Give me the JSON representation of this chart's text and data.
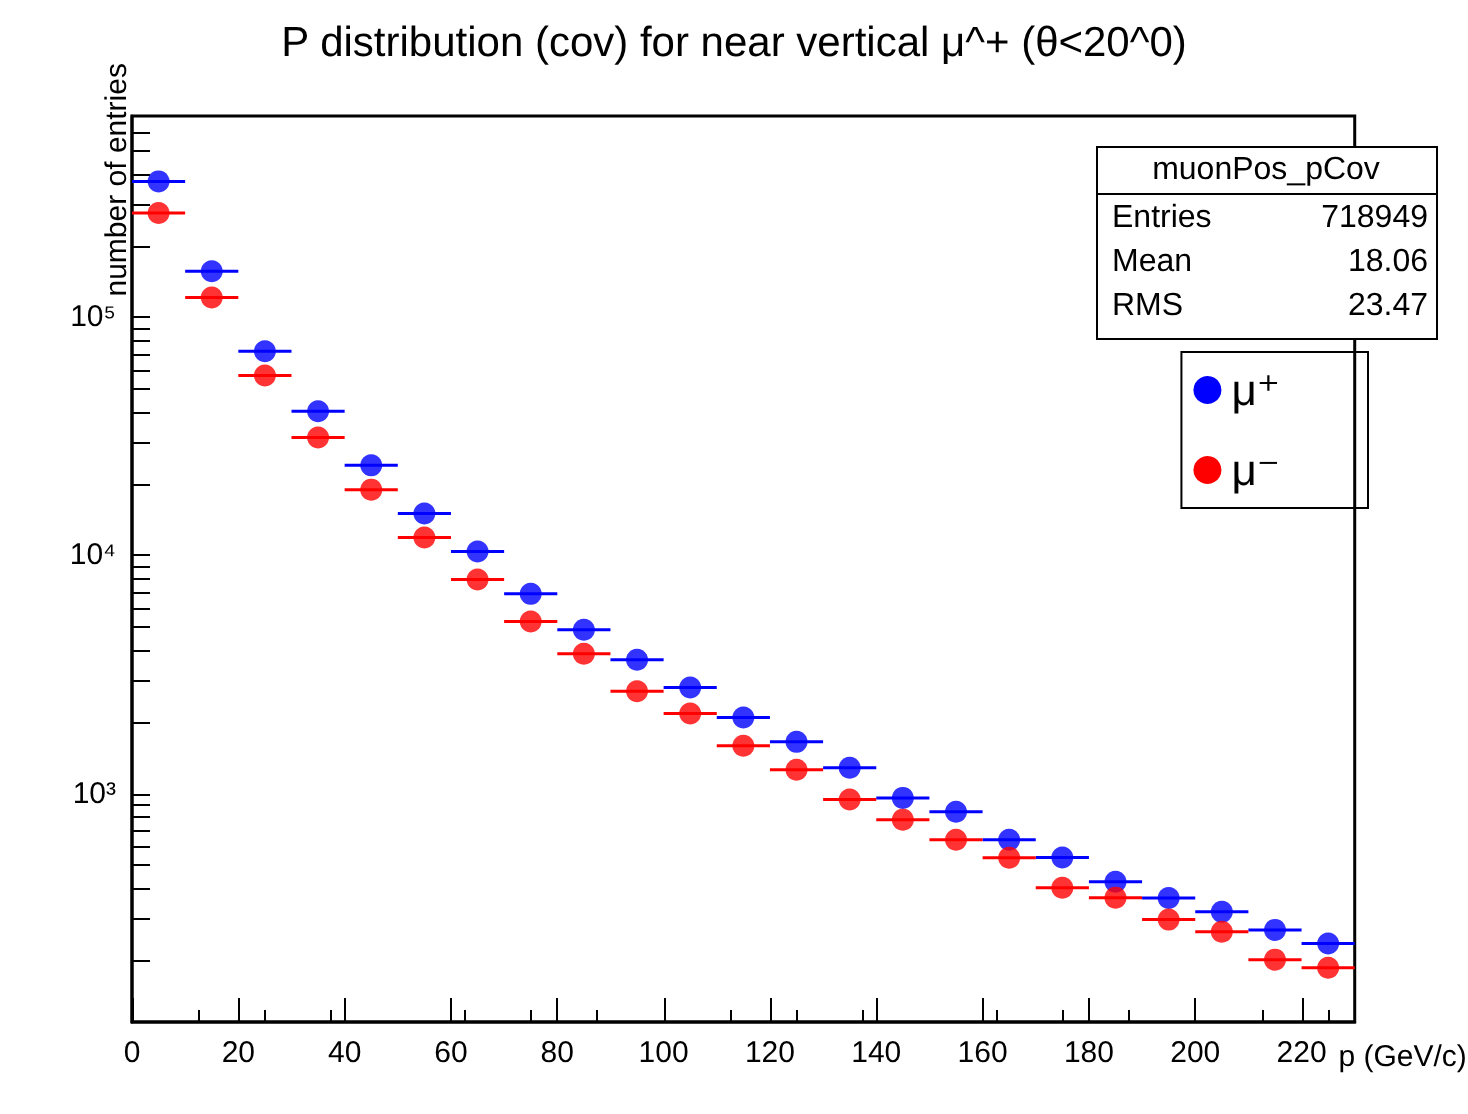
{
  "chart_data": {
    "type": "scatter",
    "title": "P distribution (cov) for near vertical μ^+ (θ<20^0)",
    "xlabel": "p (GeV/c)",
    "ylabel": "number of entries",
    "annotations": [
      "muonPos_pCov",
      "Entries",
      "718949",
      "Mean",
      "18.06",
      "RMS",
      "23.47"
    ],
    "x": [
      5,
      15,
      25,
      35,
      45,
      55,
      65,
      75,
      85,
      95,
      105,
      115,
      125,
      135,
      145,
      155,
      165,
      175,
      185,
      195,
      205,
      215,
      225
    ],
    "series": [
      {
        "name": "μ⁺",
        "color": "#0000ff",
        "values": [
          372000,
          156000,
          72000,
          40300,
          23900,
          15000,
          10400,
          6900,
          4880,
          3650,
          2790,
          2090,
          1650,
          1285,
          960,
          840,
          640,
          540,
          427,
          365,
          319,
          268,
          235
        ],
        "xerrors": [
          5,
          5,
          5,
          5,
          5,
          5,
          5,
          5,
          5,
          5,
          5,
          5,
          5,
          5,
          5,
          5,
          5,
          5,
          5,
          5,
          5,
          5,
          5
        ]
      },
      {
        "name": "μ⁻",
        "color": "#ff0000",
        "values": [
          274000,
          121000,
          57000,
          31300,
          18900,
          11900,
          7930,
          5280,
          3870,
          2690,
          2170,
          1590,
          1260,
          945,
          778,
          641,
          538,
          403,
          366,
          296,
          263,
          201,
          186
        ],
        "xerrors": [
          5,
          5,
          5,
          5,
          5,
          5,
          5,
          5,
          5,
          5,
          5,
          5,
          5,
          5,
          5,
          5,
          5,
          5,
          5,
          5,
          5,
          5,
          5
        ]
      }
    ],
    "xlim": [
      0,
      230
    ],
    "xticks": [
      0,
      20,
      40,
      60,
      80,
      100,
      120,
      140,
      160,
      180,
      200,
      220
    ],
    "ylim": [
      110,
      700000
    ],
    "yticks": [
      {
        "value": 200,
        "label": null
      },
      {
        "value": 300,
        "label": null
      },
      {
        "value": 400,
        "label": null
      },
      {
        "value": 500,
        "label": null
      },
      {
        "value": 600,
        "label": null
      },
      {
        "value": 700,
        "label": null
      },
      {
        "value": 800,
        "label": null
      },
      {
        "value": 900,
        "label": null
      },
      {
        "value": 1000,
        "label": "10³"
      },
      {
        "value": 2000,
        "label": null
      },
      {
        "value": 3000,
        "label": null
      },
      {
        "value": 4000,
        "label": null
      },
      {
        "value": 5000,
        "label": null
      },
      {
        "value": 6000,
        "label": null
      },
      {
        "value": 7000,
        "label": null
      },
      {
        "value": 8000,
        "label": null
      },
      {
        "value": 9000,
        "label": null
      },
      {
        "value": 10000,
        "label": "10⁴"
      },
      {
        "value": 20000,
        "label": null
      },
      {
        "value": 30000,
        "label": null
      },
      {
        "value": 40000,
        "label": null
      },
      {
        "value": 50000,
        "label": null
      },
      {
        "value": 60000,
        "label": null
      },
      {
        "value": 70000,
        "label": null
      },
      {
        "value": 80000,
        "label": null
      },
      {
        "value": 90000,
        "label": null
      },
      {
        "value": 100000,
        "label": "10⁵"
      },
      {
        "value": 200000,
        "label": null
      },
      {
        "value": 300000,
        "label": null
      },
      {
        "value": 400000,
        "label": null
      },
      {
        "value": 500000,
        "label": null
      },
      {
        "value": 600000,
        "label": null
      }
    ],
    "log": "y",
    "grid": false,
    "legend": "top right",
    "marker": "circle"
  }
}
